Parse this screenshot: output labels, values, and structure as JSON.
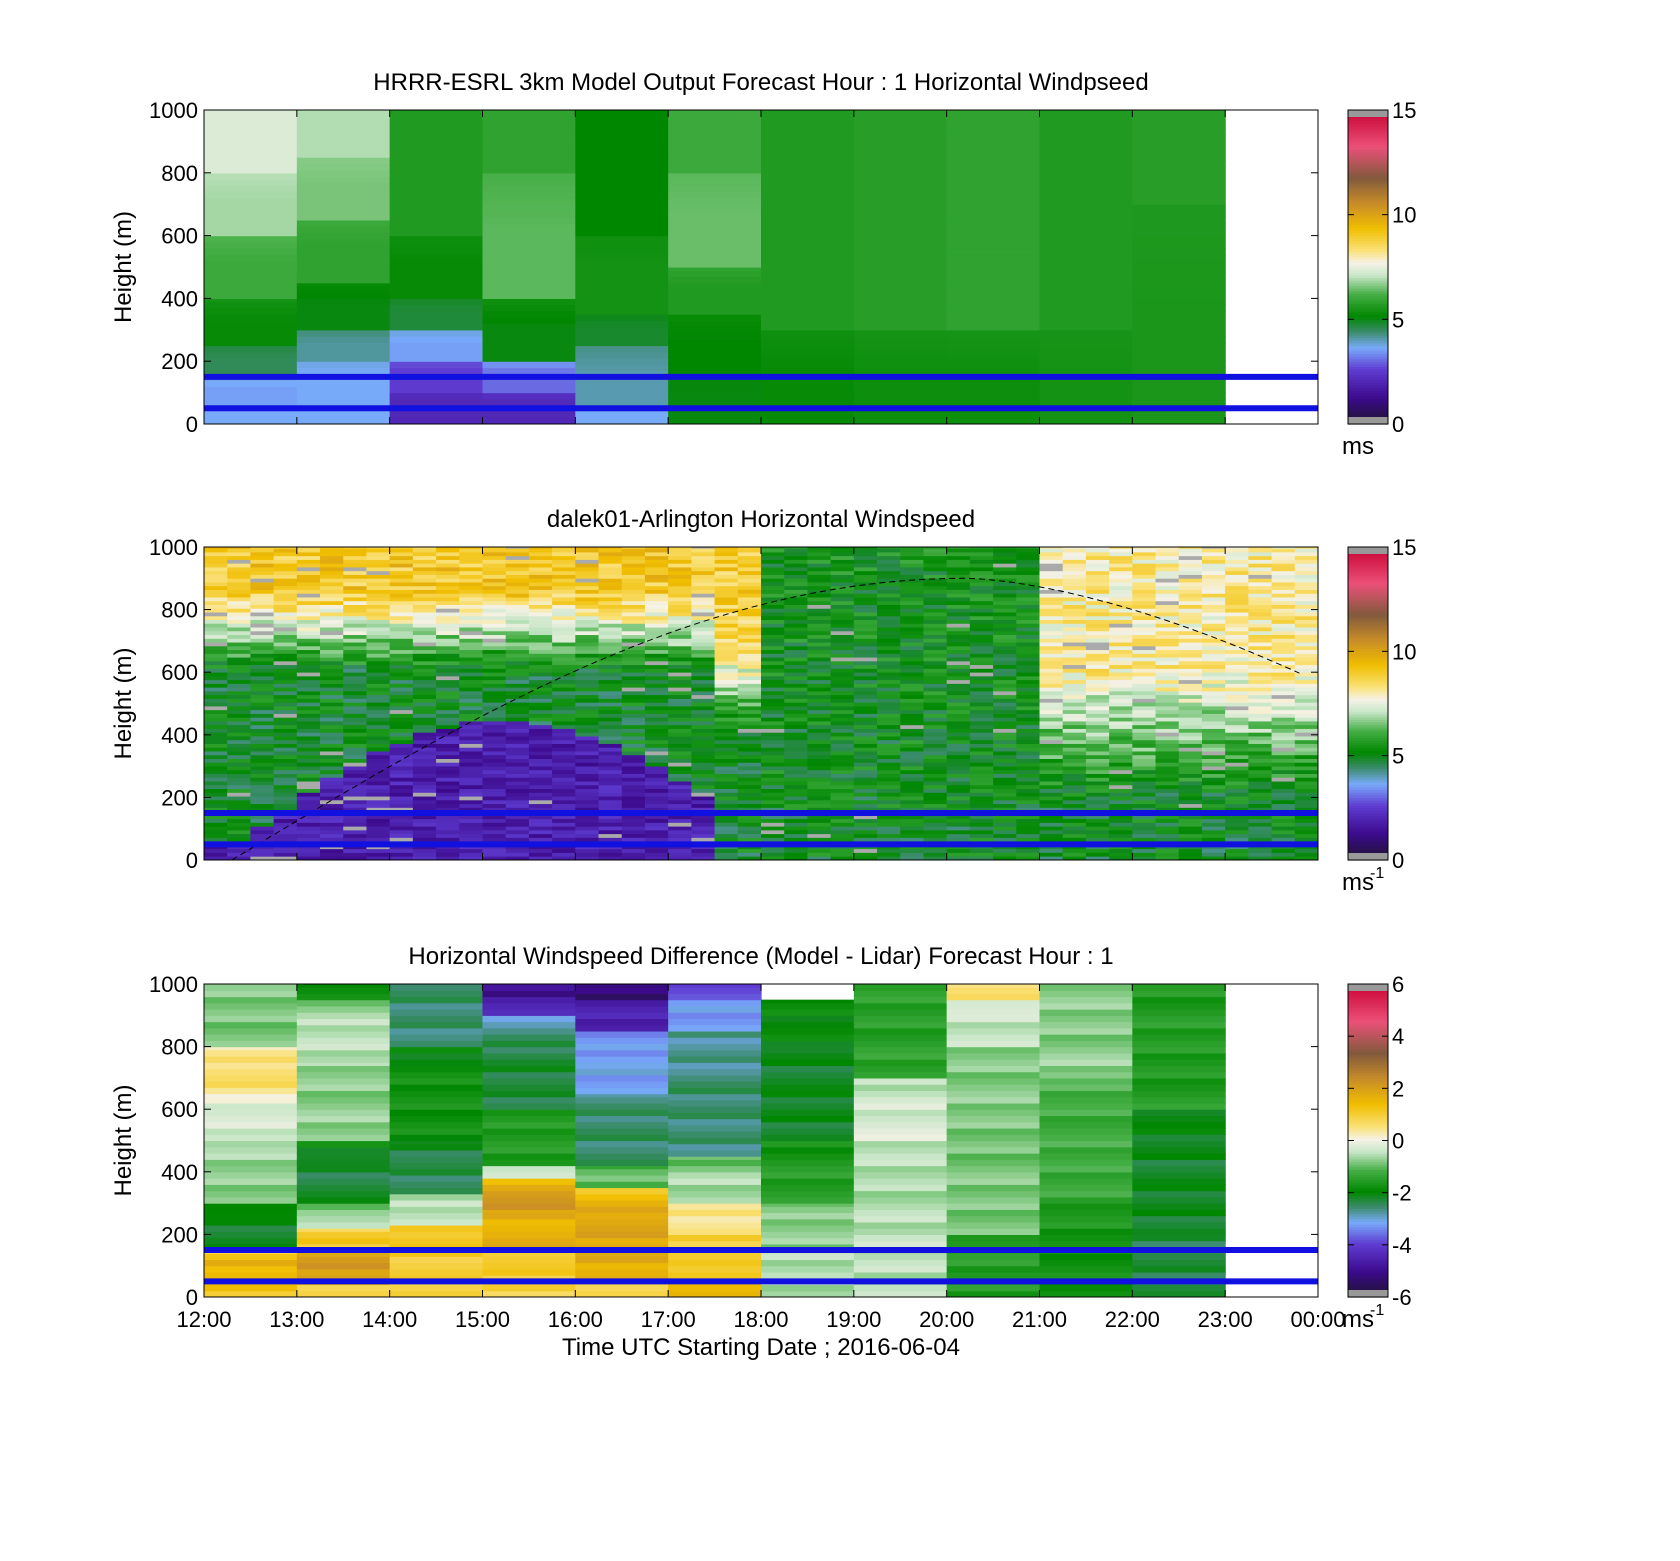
{
  "chart_data": [
    {
      "type": "heatmap",
      "title": "HRRR-ESRL 3km Model Output   Forecast Hour : 1 Horizontal Windpseed",
      "ylabel": "Height (m)",
      "ylim": [
        0,
        1000
      ],
      "yticks": [
        "0",
        "200",
        "400",
        "600",
        "800",
        "1000"
      ],
      "xlim_hours_utc": [
        12,
        24
      ],
      "colorbar": {
        "range": [
          0,
          15
        ],
        "ticks": [
          "0",
          "5",
          "10",
          "15"
        ],
        "unit": "ms",
        "unit_superscript": ""
      },
      "reference_lines_m": [
        50,
        150
      ],
      "reference_line_color": "#1010e0",
      "data_end_hour_utc": 23,
      "columns": [
        {
          "start": 12,
          "bands": [
            [
              0,
              60,
              3.6
            ],
            [
              60,
              150,
              3.5
            ],
            [
              150,
              250,
              4.5
            ],
            [
              250,
              400,
              5.2
            ],
            [
              400,
              600,
              6.0
            ],
            [
              600,
              800,
              6.8
            ],
            [
              800,
              1000,
              7.3
            ]
          ]
        },
        {
          "start": 13,
          "bands": [
            [
              0,
              100,
              3.6
            ],
            [
              100,
              200,
              3.6
            ],
            [
              200,
              300,
              4.1
            ],
            [
              300,
              450,
              5.0
            ],
            [
              450,
              650,
              5.8
            ],
            [
              650,
              850,
              6.5
            ],
            [
              850,
              1000,
              6.9
            ]
          ]
        },
        {
          "start": 14,
          "bands": [
            [
              0,
              100,
              2.0
            ],
            [
              100,
              200,
              2.5
            ],
            [
              200,
              300,
              3.5
            ],
            [
              300,
              400,
              4.7
            ],
            [
              400,
              600,
              5.2
            ],
            [
              600,
              1000,
              5.6
            ]
          ]
        },
        {
          "start": 15,
          "bands": [
            [
              0,
              100,
              2.0
            ],
            [
              100,
              200,
              3.0
            ],
            [
              200,
              400,
              5.0
            ],
            [
              400,
              800,
              6.3
            ],
            [
              800,
              1000,
              5.8
            ]
          ]
        },
        {
          "start": 16,
          "bands": [
            [
              0,
              50,
              3.6
            ],
            [
              50,
              250,
              4.0
            ],
            [
              250,
              350,
              4.8
            ],
            [
              350,
              600,
              5.4
            ],
            [
              600,
              1000,
              5.1
            ]
          ]
        },
        {
          "start": 17,
          "bands": [
            [
              0,
              150,
              5.0
            ],
            [
              150,
              350,
              5.1
            ],
            [
              350,
              500,
              5.6
            ],
            [
              500,
              800,
              6.4
            ],
            [
              800,
              1000,
              6.0
            ]
          ]
        },
        {
          "start": 18,
          "bands": [
            [
              0,
              300,
              5.2
            ],
            [
              300,
              1000,
              5.6
            ]
          ]
        },
        {
          "start": 19,
          "bands": [
            [
              0,
              300,
              5.3
            ],
            [
              300,
              1000,
              5.7
            ]
          ]
        },
        {
          "start": 20,
          "bands": [
            [
              0,
              300,
              5.3
            ],
            [
              300,
              1000,
              5.8
            ]
          ]
        },
        {
          "start": 21,
          "bands": [
            [
              0,
              300,
              5.4
            ],
            [
              300,
              1000,
              5.6
            ]
          ]
        },
        {
          "start": 22,
          "bands": [
            [
              0,
              700,
              5.5
            ],
            [
              700,
              1000,
              5.7
            ]
          ]
        }
      ]
    },
    {
      "type": "heatmap",
      "title": "dalek01-Arlington  Horizontal Windspeed",
      "ylabel": "Height (m)",
      "ylim": [
        0,
        1000
      ],
      "yticks": [
        "0",
        "200",
        "400",
        "600",
        "800",
        "1000"
      ],
      "xlim_hours_utc": [
        12,
        24
      ],
      "colorbar": {
        "range": [
          0,
          15
        ],
        "ticks": [
          "0",
          "5",
          "10",
          "15"
        ],
        "unit": "ms",
        "unit_superscript": "-1"
      },
      "reference_lines_m": [
        50,
        150
      ],
      "reference_line_color": "#1010e0",
      "data_end_hour_utc": 23.85,
      "columns_per_hour": 4,
      "boundary_layer_curve": {
        "style": "dashed",
        "from_hour": 12.3,
        "to_hour": 23.85,
        "peak_hour": 20.2,
        "peak_height_m": 900,
        "end_height_m": 590
      },
      "regimes": [
        {
          "from": 12.0,
          "to": 17.5,
          "surface_speed": 1.8,
          "upper_speed": 9.0,
          "transition_m": [
            600,
            850
          ]
        },
        {
          "from": 17.5,
          "to": 18.0,
          "surface_speed": 4.5,
          "upper_speed": 8.8,
          "transition_m": [
            400,
            700
          ]
        },
        {
          "from": 18.0,
          "to": 21.0,
          "surface_speed": 5.0,
          "upper_speed": 5.3,
          "transition_m": [
            0,
            1000
          ]
        },
        {
          "from": 21.0,
          "to": 23.85,
          "surface_speed": 5.5,
          "upper_speed": 8.0,
          "transition_m": [
            200,
            600
          ]
        }
      ]
    },
    {
      "type": "heatmap",
      "title": "Horizontal Windspeed Difference (Model - Lidar) Forecast Hour : 1",
      "xlabel": "Time UTC  Starting Date ; 2016-06-04",
      "ylabel": "Height (m)",
      "ylim": [
        0,
        1000
      ],
      "yticks": [
        "0",
        "200",
        "400",
        "600",
        "800",
        "1000"
      ],
      "xticks": [
        "12:00",
        "13:00",
        "14:00",
        "15:00",
        "16:00",
        "17:00",
        "18:00",
        "19:00",
        "20:00",
        "21:00",
        "22:00",
        "23:00",
        "00:00"
      ],
      "xlim_hours_utc": [
        12,
        24
      ],
      "colorbar": {
        "range": [
          -6,
          6
        ],
        "ticks": [
          "-6",
          "-4",
          "-2",
          "0",
          "2",
          "4",
          "6"
        ],
        "unit": "ms",
        "unit_superscript": "-1"
      },
      "reference_lines_m": [
        50,
        150
      ],
      "reference_line_color": "#1010e0",
      "data_end_hour_utc": 23,
      "columns": [
        {
          "start": 12,
          "bands": [
            [
              0,
              60,
              1.2
            ],
            [
              60,
              150,
              1.5
            ],
            [
              150,
              300,
              -2.2
            ],
            [
              300,
              500,
              -0.8
            ],
            [
              500,
              650,
              -0.3
            ],
            [
              650,
              800,
              0.6
            ],
            [
              800,
              1000,
              -0.9
            ]
          ]
        },
        {
          "start": 13,
          "bands": [
            [
              0,
              50,
              0.9
            ],
            [
              50,
              150,
              2.0
            ],
            [
              150,
              220,
              1.0
            ],
            [
              220,
              300,
              -0.7
            ],
            [
              300,
              500,
              -2.3
            ],
            [
              500,
              750,
              -0.8
            ],
            [
              750,
              950,
              -0.5
            ],
            [
              950,
              1000,
              -2.0
            ]
          ]
        },
        {
          "start": 14,
          "bands": [
            [
              0,
              50,
              0.8
            ],
            [
              50,
              150,
              1.0
            ],
            [
              150,
              230,
              1.2
            ],
            [
              230,
              330,
              -0.5
            ],
            [
              330,
              500,
              -2.4
            ],
            [
              500,
              800,
              -1.8
            ],
            [
              800,
              1000,
              -2.6
            ]
          ]
        },
        {
          "start": 15,
          "bands": [
            [
              0,
              50,
              0.8
            ],
            [
              50,
              150,
              1.0
            ],
            [
              150,
              280,
              1.6
            ],
            [
              280,
              380,
              2.0
            ],
            [
              380,
              420,
              -0.5
            ],
            [
              420,
              600,
              -1.6
            ],
            [
              600,
              900,
              -2.3
            ],
            [
              900,
              960,
              -4.5
            ],
            [
              960,
              1000,
              -5.0
            ]
          ]
        },
        {
          "start": 16,
          "bands": [
            [
              0,
              50,
              0.8
            ],
            [
              50,
              150,
              1.7
            ],
            [
              150,
              350,
              1.8
            ],
            [
              350,
              420,
              -1.0
            ],
            [
              420,
              650,
              -2.5
            ],
            [
              650,
              850,
              -3.2
            ],
            [
              850,
              950,
              -4.5
            ],
            [
              950,
              1000,
              -5.3
            ]
          ]
        },
        {
          "start": 17,
          "bands": [
            [
              0,
              100,
              1.3
            ],
            [
              100,
              200,
              1.0
            ],
            [
              200,
              300,
              0.4
            ],
            [
              300,
              450,
              -0.6
            ],
            [
              450,
              850,
              -2.6
            ],
            [
              850,
              950,
              -3.3
            ],
            [
              950,
              1000,
              -3.8
            ]
          ]
        },
        {
          "start": 18,
          "bands": [
            [
              0,
              150,
              -0.6
            ],
            [
              150,
              300,
              -0.8
            ],
            [
              300,
              500,
              -1.6
            ],
            [
              500,
              800,
              -2.2
            ],
            [
              800,
              950,
              -2.0
            ]
          ]
        },
        {
          "start": 19,
          "bands": [
            [
              0,
              200,
              -0.5
            ],
            [
              200,
              500,
              -0.6
            ],
            [
              500,
              700,
              -0.3
            ],
            [
              700,
              1000,
              -1.5
            ]
          ]
        },
        {
          "start": 20,
          "bands": [
            [
              0,
              200,
              -1.6
            ],
            [
              200,
              800,
              -0.9
            ],
            [
              800,
              950,
              -0.5
            ],
            [
              950,
              1000,
              0.6
            ]
          ]
        },
        {
          "start": 21,
          "bands": [
            [
              0,
              300,
              -1.8
            ],
            [
              300,
              700,
              -1.3
            ],
            [
              700,
              1000,
              -0.8
            ]
          ]
        },
        {
          "start": 22,
          "bands": [
            [
              0,
              200,
              -2.4
            ],
            [
              200,
              600,
              -2.2
            ],
            [
              600,
              1000,
              -1.6
            ]
          ]
        }
      ]
    }
  ]
}
